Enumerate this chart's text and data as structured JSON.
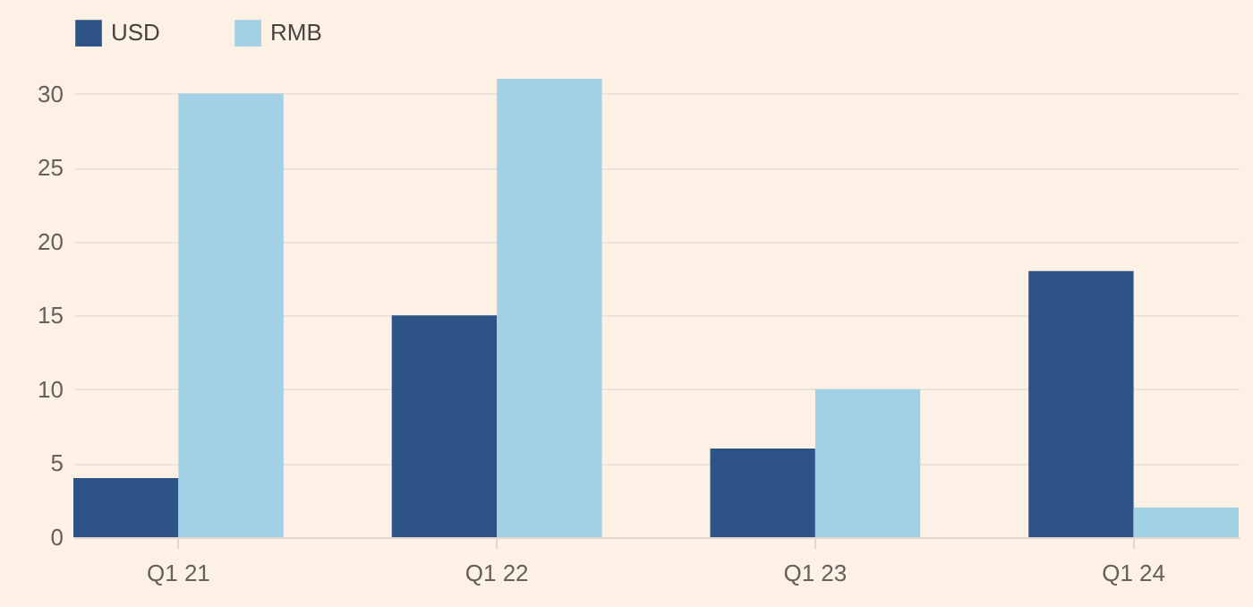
{
  "chart_data": {
    "type": "bar",
    "categories": [
      "Q1 21",
      "Q1 22",
      "Q1 23",
      "Q1 24"
    ],
    "series": [
      {
        "name": "USD",
        "color": "#2e5386",
        "values": [
          4,
          15,
          6,
          18
        ]
      },
      {
        "name": "RMB",
        "color": "#a2d0e4",
        "values": [
          30,
          31,
          10,
          2
        ]
      }
    ],
    "ylim": [
      0,
      31
    ],
    "yticks": [
      0,
      5,
      10,
      15,
      20,
      25,
      30
    ],
    "grid": "y",
    "legend": "top left"
  }
}
